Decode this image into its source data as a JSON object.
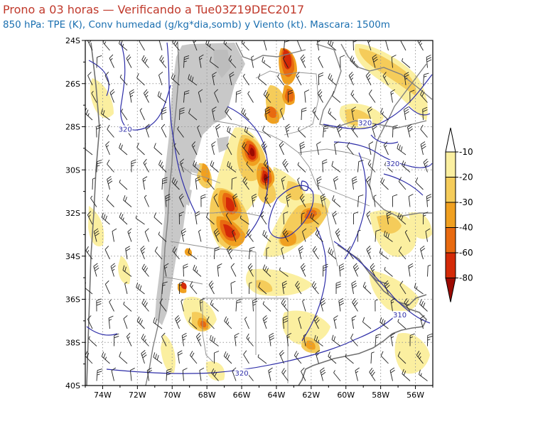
{
  "header": {
    "title": "Prono a 03 horas — Verificando a Tue03Z19DEC2017",
    "subtitle": "850 hPa: TPE (K), Conv humedad (g/kg*dia,somb) y Viento (kt). Mascara: 1500m"
  },
  "map": {
    "lat_labels": [
      "24S",
      "26S",
      "28S",
      "30S",
      "32S",
      "34S",
      "36S",
      "38S",
      "40S"
    ],
    "lon_labels": [
      "74W",
      "72W",
      "70W",
      "68W",
      "66W",
      "64W",
      "62W",
      "60W",
      "58W",
      "56W"
    ],
    "contour_labels": [
      {
        "text": "320",
        "lon": -72.7,
        "lat": -28.2
      },
      {
        "text": "320",
        "lon": -58.9,
        "lat": -27.9
      },
      {
        "text": "320",
        "lon": -57.3,
        "lat": -29.8
      },
      {
        "text": "320",
        "lon": -66.0,
        "lat": -39.5
      },
      {
        "text": "310",
        "lon": -56.9,
        "lat": -36.8
      }
    ]
  },
  "colorbar": {
    "levels": [
      "-10",
      "-20",
      "-30",
      "-40",
      "-60",
      "-80"
    ],
    "colors": [
      "#ffffff",
      "#fbefa0",
      "#f5cc5a",
      "#f0a020",
      "#e86a10",
      "#d42a08",
      "#9c0a02"
    ]
  },
  "colors": {
    "mask": "#c8c8c8",
    "border": "#808080",
    "contour": "#2e2ea8",
    "grid": "#9a9a9a"
  }
}
